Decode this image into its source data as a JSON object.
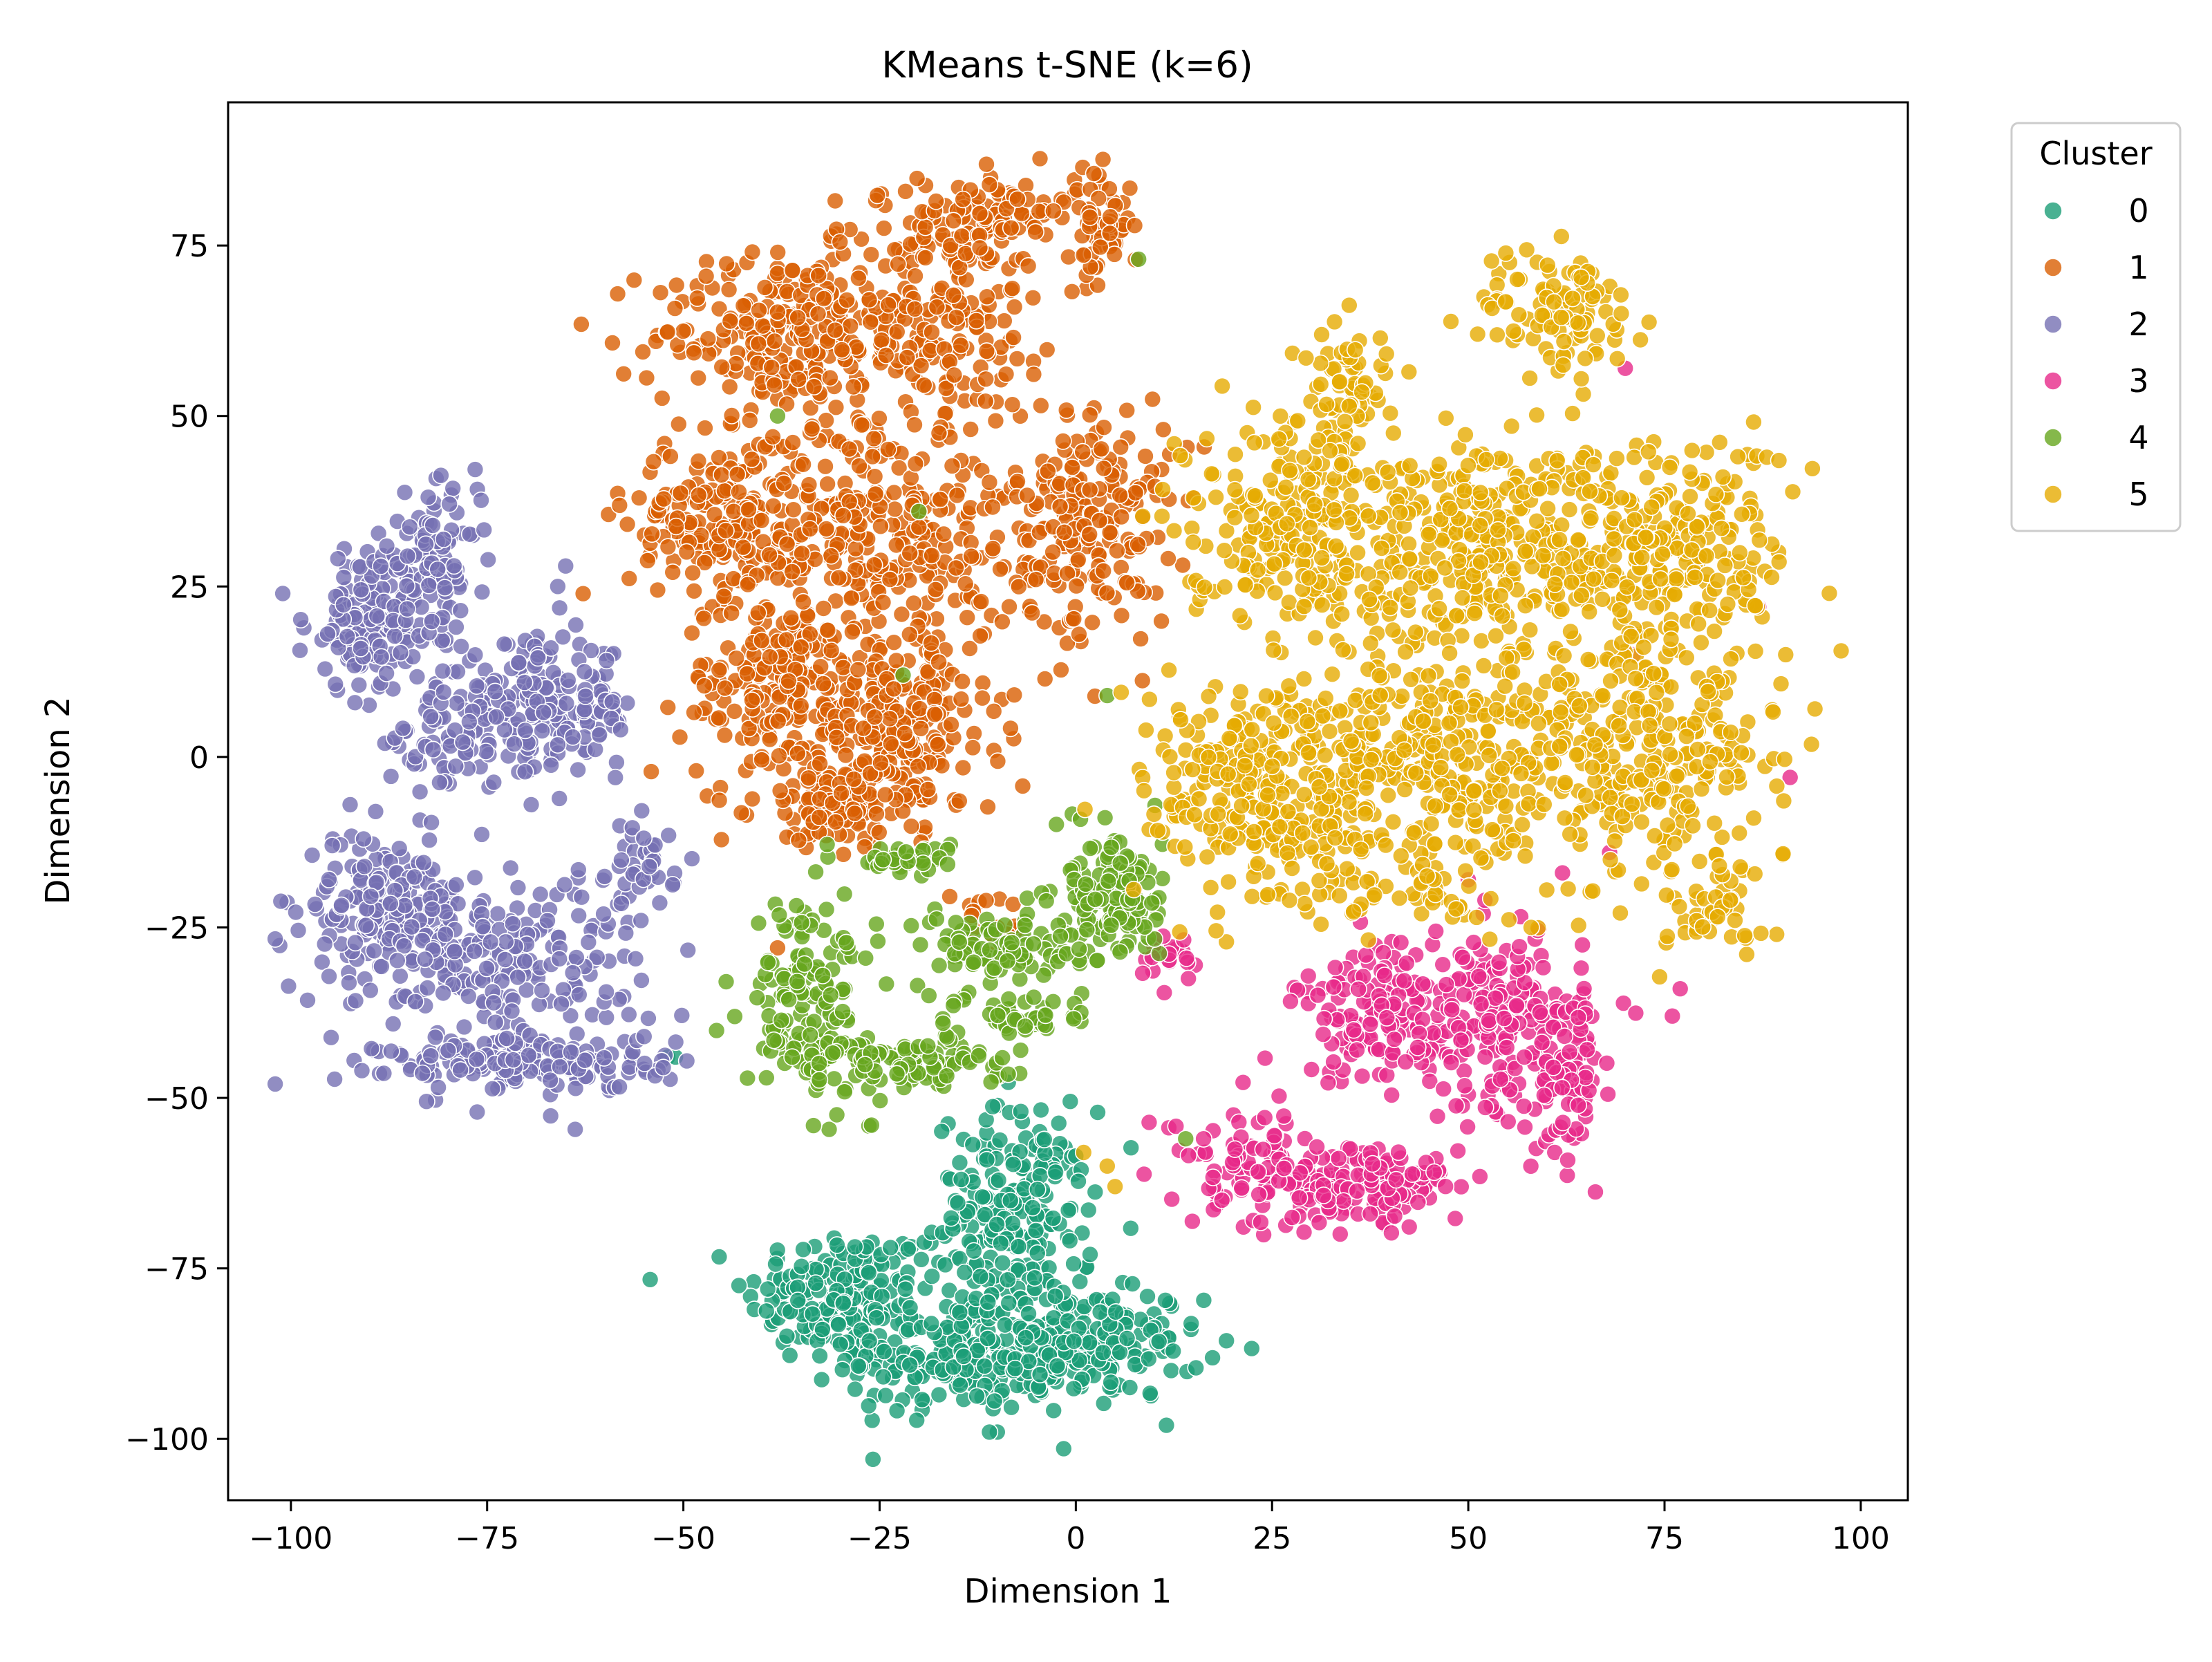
{
  "chart_data": {
    "type": "scatter",
    "title": "KMeans t-SNE (k=6)",
    "xlabel": "Dimension 1",
    "ylabel": "Dimension 2",
    "xlim": [
      -108,
      106
    ],
    "ylim": [
      -109,
      96
    ],
    "xticks": [
      -100,
      -75,
      -50,
      -25,
      0,
      25,
      50,
      75,
      100
    ],
    "xtick_labels": [
      "−100",
      "−75",
      "−50",
      "−25",
      "0",
      "25",
      "50",
      "75",
      "100"
    ],
    "yticks": [
      -100,
      -75,
      -50,
      -25,
      0,
      25,
      50,
      75
    ],
    "ytick_labels": [
      "−100",
      "−75",
      "−50",
      "−25",
      "0",
      "25",
      "50",
      "75"
    ],
    "grid": false,
    "legend": {
      "title": "Cluster",
      "placement": "outside top-right"
    },
    "series": [
      {
        "name": "0",
        "color": "#1b9e77",
        "blobs": [
          {
            "cx": -30,
            "cy": -79,
            "sx": 6,
            "sy": 5,
            "n": 170
          },
          {
            "cx": -15,
            "cy": -88,
            "sx": 7,
            "sy": 4,
            "n": 200
          },
          {
            "cx": -8,
            "cy": -68,
            "sx": 5,
            "sy": 8,
            "n": 230
          },
          {
            "cx": 2,
            "cy": -86,
            "sx": 7,
            "sy": 4,
            "n": 180
          }
        ],
        "extra_points": [
          [
            -52,
            -44
          ],
          [
            -51,
            -44
          ],
          [
            -10,
            -99
          ],
          [
            -11,
            -99
          ]
        ]
      },
      {
        "name": "1",
        "color": "#d95f02",
        "blobs": [
          {
            "cx": -38,
            "cy": 62,
            "sx": 8,
            "sy": 6,
            "n": 200
          },
          {
            "cx": -20,
            "cy": 65,
            "sx": 9,
            "sy": 8,
            "n": 230
          },
          {
            "cx": -10,
            "cy": 80,
            "sx": 5,
            "sy": 3,
            "n": 90
          },
          {
            "cx": 3,
            "cy": 78,
            "sx": 2,
            "sy": 4,
            "n": 60
          },
          {
            "cx": -45,
            "cy": 35,
            "sx": 6,
            "sy": 6,
            "n": 200
          },
          {
            "cx": -25,
            "cy": 33,
            "sx": 9,
            "sy": 9,
            "n": 300
          },
          {
            "cx": 2,
            "cy": 35,
            "sx": 5,
            "sy": 9,
            "n": 200
          },
          {
            "cx": -38,
            "cy": 10,
            "sx": 6,
            "sy": 7,
            "n": 200
          },
          {
            "cx": -22,
            "cy": 5,
            "sx": 6,
            "sy": 7,
            "n": 200
          },
          {
            "cx": -30,
            "cy": -7,
            "sx": 5,
            "sy": 3,
            "n": 120
          },
          {
            "cx": -12,
            "cy": -24,
            "sx": 2,
            "sy": 2,
            "n": 15
          }
        ],
        "extra_points": [
          [
            -38,
            -28
          ],
          [
            -10,
            -25
          ]
        ]
      },
      {
        "name": "2",
        "color": "#7570b3",
        "blobs": [
          {
            "cx": -90,
            "cy": 20,
            "sx": 4,
            "sy": 5,
            "n": 140
          },
          {
            "cx": -82,
            "cy": 28,
            "sx": 3,
            "sy": 5,
            "n": 110
          },
          {
            "cx": -68,
            "cy": 7,
            "sx": 6,
            "sy": 5,
            "n": 200
          },
          {
            "cx": -80,
            "cy": 3,
            "sx": 4,
            "sy": 4,
            "n": 60
          },
          {
            "cx": -88,
            "cy": -22,
            "sx": 5,
            "sy": 5,
            "n": 180
          },
          {
            "cx": -73,
            "cy": -30,
            "sx": 9,
            "sy": 7,
            "n": 220
          },
          {
            "cx": -70,
            "cy": -45,
            "sx": 9,
            "sy": 2,
            "n": 160
          },
          {
            "cx": -55,
            "cy": -16,
            "sx": 2,
            "sy": 3,
            "n": 40
          }
        ],
        "extra_points": [
          [
            -66,
            25
          ],
          [
            -65,
            28
          ],
          [
            -58,
            4
          ],
          [
            -55,
            -41
          ]
        ]
      },
      {
        "name": "3",
        "color": "#e7298a",
        "blobs": [
          {
            "cx": 40,
            "cy": -38,
            "sx": 6,
            "sy": 5,
            "n": 160
          },
          {
            "cx": 55,
            "cy": -40,
            "sx": 5,
            "sy": 7,
            "n": 180
          },
          {
            "cx": 37,
            "cy": -63,
            "sx": 6,
            "sy": 3,
            "n": 150
          },
          {
            "cx": 22,
            "cy": -60,
            "sx": 5,
            "sy": 4,
            "n": 90
          },
          {
            "cx": 63,
            "cy": -46,
            "sx": 2,
            "sy": 6,
            "n": 70
          },
          {
            "cx": 13,
            "cy": -29,
            "sx": 2,
            "sy": 2,
            "n": 20
          }
        ],
        "extra_points": [
          [
            70,
            57
          ],
          [
            87,
            22
          ],
          [
            71,
            15
          ],
          [
            91,
            -3
          ],
          [
            68,
            -14
          ],
          [
            76,
            -38
          ],
          [
            77,
            -34
          ],
          [
            50,
            -18
          ],
          [
            62,
            -17
          ]
        ]
      },
      {
        "name": "4",
        "color": "#66a61e",
        "blobs": [
          {
            "cx": -34,
            "cy": -35,
            "sx": 4,
            "sy": 7,
            "n": 140
          },
          {
            "cx": -22,
            "cy": -45,
            "sx": 7,
            "sy": 2,
            "n": 110
          },
          {
            "cx": -10,
            "cy": -28,
            "sx": 5,
            "sy": 3,
            "n": 90
          },
          {
            "cx": 5,
            "cy": -20,
            "sx": 3,
            "sy": 5,
            "n": 140
          },
          {
            "cx": -22,
            "cy": -15,
            "sx": 3,
            "sy": 1,
            "n": 40
          },
          {
            "cx": -6,
            "cy": -38,
            "sx": 4,
            "sy": 2,
            "n": 40
          }
        ],
        "extra_points": [
          [
            -38,
            50
          ],
          [
            -22,
            12
          ],
          [
            -20,
            36
          ],
          [
            8,
            73
          ],
          [
            4,
            9
          ],
          [
            14,
            -56
          ]
        ]
      },
      {
        "name": "5",
        "color": "#e6ab02",
        "blobs": [
          {
            "cx": 62,
            "cy": 65,
            "sx": 5,
            "sy": 5,
            "n": 100
          },
          {
            "cx": 35,
            "cy": 55,
            "sx": 3,
            "sy": 5,
            "n": 60
          },
          {
            "cx": 28,
            "cy": 35,
            "sx": 7,
            "sy": 8,
            "n": 250
          },
          {
            "cx": 52,
            "cy": 30,
            "sx": 9,
            "sy": 9,
            "n": 320
          },
          {
            "cx": 75,
            "cy": 30,
            "sx": 8,
            "sy": 8,
            "n": 250
          },
          {
            "cx": 25,
            "cy": -5,
            "sx": 8,
            "sy": 8,
            "n": 280
          },
          {
            "cx": 45,
            "cy": 0,
            "sx": 9,
            "sy": 8,
            "n": 300
          },
          {
            "cx": 72,
            "cy": 0,
            "sx": 9,
            "sy": 8,
            "n": 280
          },
          {
            "cx": 82,
            "cy": -22,
            "sx": 4,
            "sy": 4,
            "n": 50
          },
          {
            "cx": 40,
            "cy": -20,
            "sx": 8,
            "sy": 3,
            "n": 60
          }
        ],
        "extra_points": [
          [
            96,
            24
          ],
          [
            4,
            -60
          ],
          [
            5,
            -63
          ],
          [
            1,
            -58
          ],
          [
            58,
            -25
          ]
        ]
      }
    ]
  }
}
